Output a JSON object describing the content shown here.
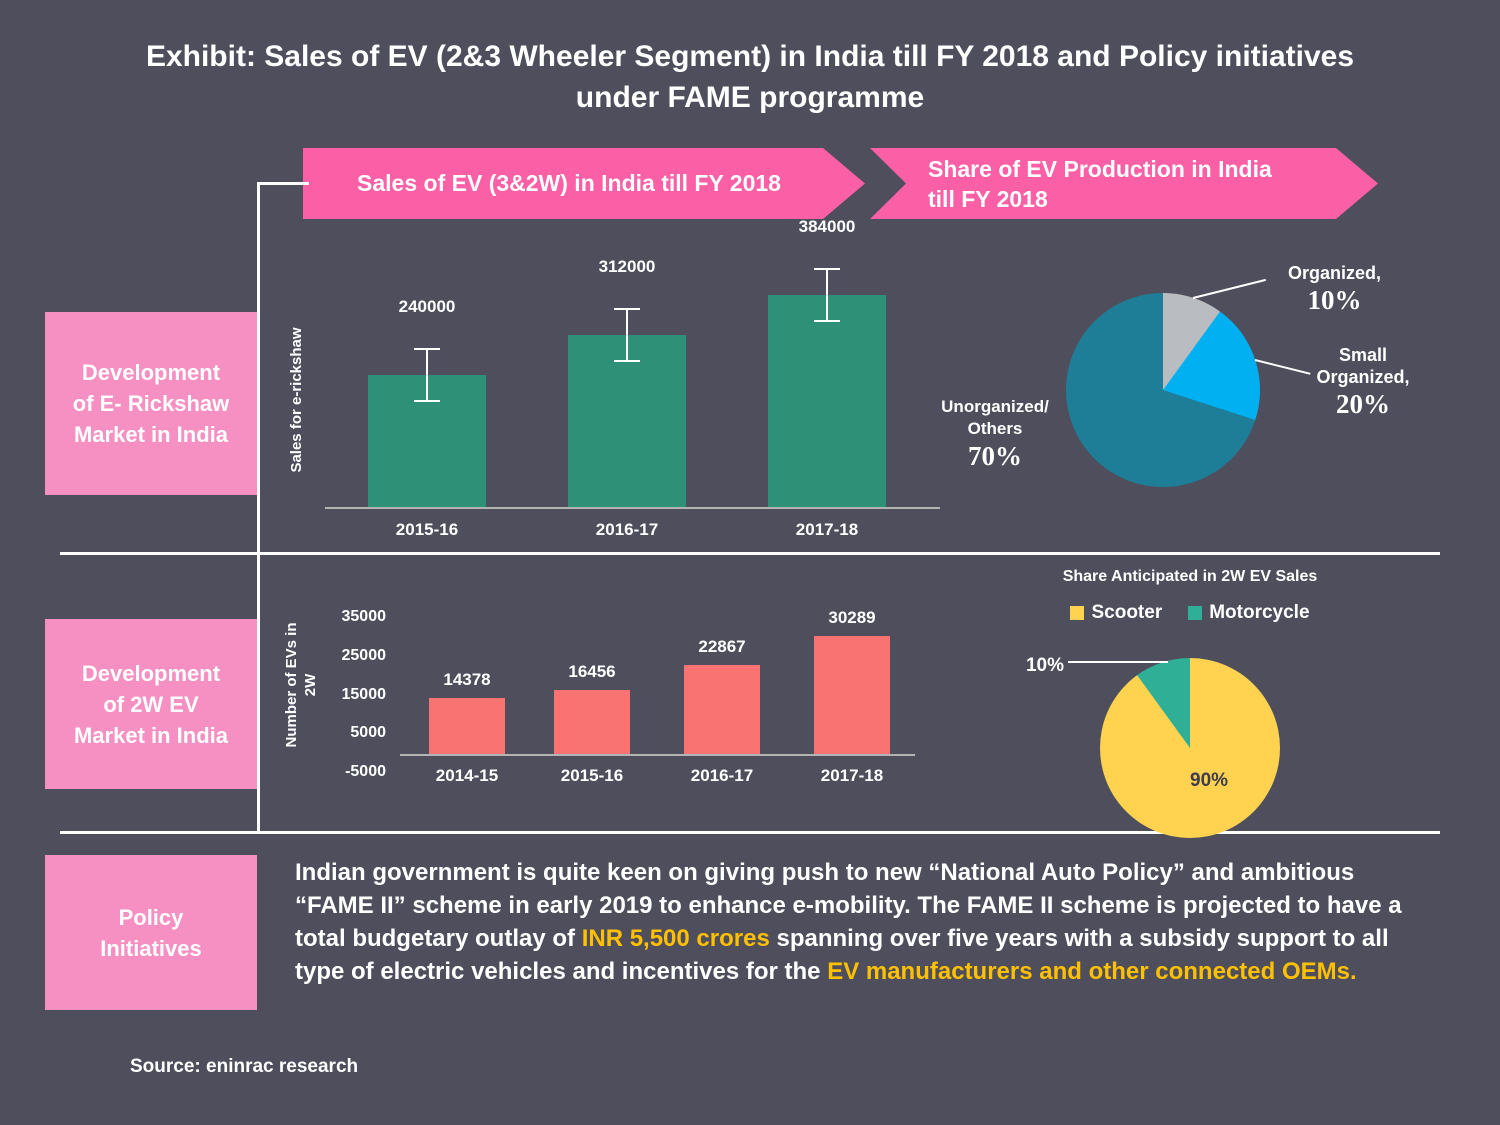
{
  "title": "Exhibit: Sales of EV (2&3 Wheeler Segment) in India till FY 2018 and Policy initiatives under FAME programme",
  "banners": {
    "sales": "Sales of EV (3&2W) in India till FY 2018",
    "share": "Share of EV Production in India\ntill FY 2018"
  },
  "side_boxes": [
    {
      "label": "Development\nof E- Rickshaw\nMarket in India"
    },
    {
      "label": "Development\nof 2W EV\nMarket in India"
    },
    {
      "label": "Policy\nInitiatives"
    }
  ],
  "chart_data": [
    {
      "id": "erickshaw_bar",
      "type": "bar",
      "ylabel": "Sales for e-rickshaw",
      "categories": [
        "2015-16",
        "2016-17",
        "2017-18"
      ],
      "values": [
        240000,
        312000,
        384000
      ],
      "ylim": [
        0,
        430000
      ],
      "bar_color": "#2e9077",
      "error_bars": true,
      "grid": false,
      "legend_position": "none"
    },
    {
      "id": "production_pie",
      "type": "pie",
      "slices": [
        {
          "label": "Organized",
          "value": 10,
          "color": "#b9bcc0"
        },
        {
          "label": "Small Organized",
          "value": 20,
          "color": "#00b0f0"
        },
        {
          "label": "Unorganized/Others",
          "value": 70,
          "color": "#1e7e97"
        }
      ],
      "labels": {
        "organized_name": "Organized,",
        "organized_pct": "10%",
        "small_name_1": "Small",
        "small_name_2": "Organized,",
        "small_pct": "20%",
        "unorganized_name_1": "Unorganized/",
        "unorganized_name_2": "Others",
        "unorganized_pct": "70%"
      }
    },
    {
      "id": "two_wheeler_bar",
      "type": "bar",
      "ylabel": "Number of EVs in\n2W",
      "categories": [
        "2014-15",
        "2015-16",
        "2016-17",
        "2017-18"
      ],
      "values": [
        14378,
        16456,
        22867,
        30289
      ],
      "yticks": [
        35000,
        25000,
        15000,
        5000,
        -5000
      ],
      "ylim": [
        -5000,
        35000
      ],
      "bar_color": "#f97373",
      "error_bars": false,
      "grid": false,
      "legend_position": "none"
    },
    {
      "id": "two_wheeler_share_pie",
      "type": "pie",
      "title": "Share Anticipated in 2W EV Sales",
      "legend": [
        {
          "label": "Scooter",
          "color": "#ffd34f"
        },
        {
          "label": "Motorcycle",
          "color": "#2fb096"
        }
      ],
      "slices": [
        {
          "label": "Scooter",
          "value": 90,
          "color": "#ffd34f"
        },
        {
          "label": "Motorcycle",
          "value": 10,
          "color": "#2fb096"
        }
      ],
      "labels": {
        "motorcycle_pct": "10%",
        "scooter_pct": "90%"
      }
    }
  ],
  "policy": {
    "segments": [
      {
        "text": "Indian government is quite keen on giving push to new “National Auto Policy” and ambitious “FAME II” scheme in early 2019 to enhance e-mobility. The FAME II scheme is projected to have a total budgetary outlay of ",
        "highlight": false
      },
      {
        "text": "INR 5,500 crores",
        "highlight": true
      },
      {
        "text": " spanning over five years with a subsidy support to all type of electric vehicles and incentives for the ",
        "highlight": false
      },
      {
        "text": "EV manufacturers and other connected OEMs.",
        "highlight": true
      }
    ]
  },
  "source": "Source: eninrac research",
  "colors": {
    "background": "#4e4e5d",
    "banner_pink": "#fb5fa5",
    "box_pink": "#f790c2",
    "highlight_yellow": "#ffc000"
  }
}
